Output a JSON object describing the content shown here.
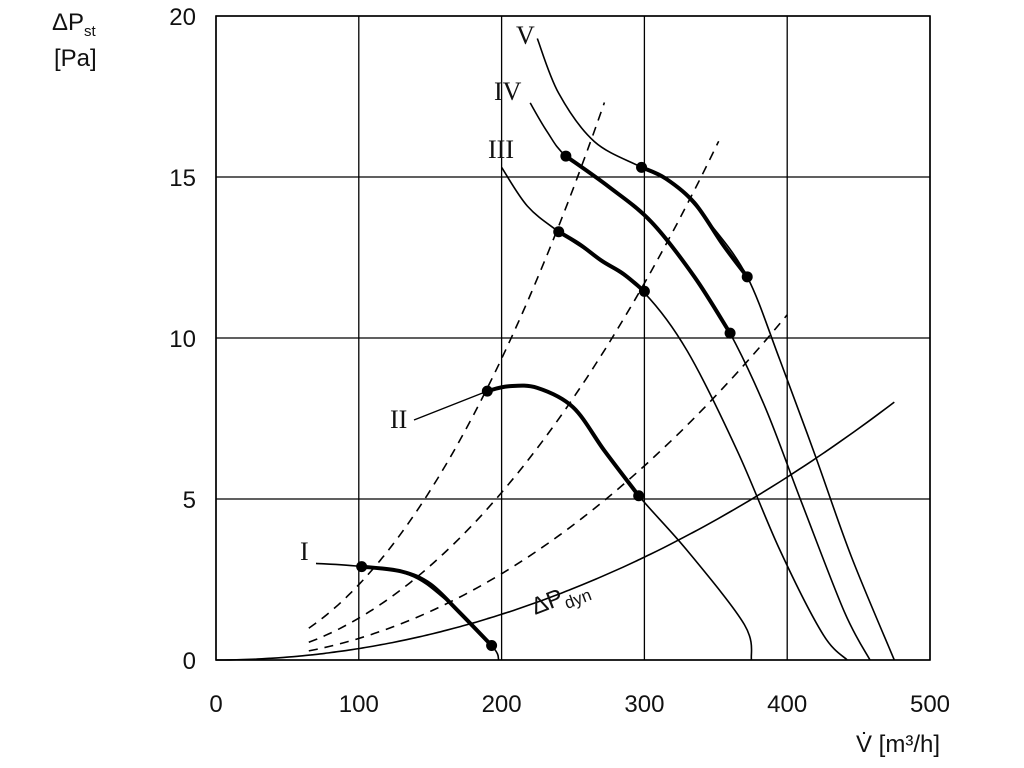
{
  "chart_data": {
    "type": "line",
    "title": "",
    "xlabel": "V̇ [m³/h]",
    "ylabel_main": "ΔP",
    "ylabel_sub": "st",
    "ylabel_unit": "[Pa]",
    "xlim": [
      0,
      500
    ],
    "ylim": [
      0,
      20
    ],
    "x_ticks": [
      0,
      100,
      200,
      300,
      400,
      500
    ],
    "y_ticks": [
      0,
      5,
      10,
      15,
      20
    ],
    "x_tick_labels": [
      "0",
      "100",
      "200",
      "300",
      "400",
      "500"
    ],
    "y_tick_labels": [
      "0",
      "5",
      "10",
      "15",
      "20"
    ],
    "grid": true,
    "series": [
      {
        "name": "I",
        "points": [
          [
            70,
            3.0
          ],
          [
            102,
            2.9
          ],
          [
            135,
            2.65
          ],
          [
            160,
            1.9
          ],
          [
            193,
            0.45
          ],
          [
            198,
            0
          ]
        ],
        "operating_range": [
          [
            102,
            2.9
          ],
          [
            130,
            2.75
          ],
          [
            150,
            2.35
          ],
          [
            170,
            1.5
          ],
          [
            193,
            0.45
          ]
        ],
        "markers": [
          [
            102,
            2.9
          ],
          [
            193,
            0.45
          ]
        ]
      },
      {
        "name": "II",
        "points": [
          [
            190,
            8.35
          ],
          [
            205,
            8.5
          ],
          [
            225,
            8.45
          ],
          [
            250,
            7.85
          ],
          [
            272,
            6.5
          ],
          [
            296,
            5.1
          ],
          [
            330,
            3.4
          ],
          [
            370,
            1.1
          ],
          [
            375,
            0
          ]
        ],
        "operating_range": [
          [
            190,
            8.35
          ],
          [
            205,
            8.5
          ],
          [
            225,
            8.45
          ],
          [
            250,
            7.85
          ],
          [
            272,
            6.5
          ],
          [
            296,
            5.1
          ]
        ],
        "markers": [
          [
            190,
            8.35
          ],
          [
            296,
            5.1
          ]
        ]
      },
      {
        "name": "III",
        "points": [
          [
            200,
            15.3
          ],
          [
            218,
            14.1
          ],
          [
            240,
            13.3
          ],
          [
            270,
            12.4
          ],
          [
            300,
            11.4
          ],
          [
            330,
            9.6
          ],
          [
            365,
            6.5
          ],
          [
            395,
            3.4
          ],
          [
            425,
            0.8
          ],
          [
            442,
            0
          ]
        ],
        "operating_range": [
          [
            240,
            13.3
          ],
          [
            255,
            12.9
          ],
          [
            270,
            12.4
          ],
          [
            285,
            12.0
          ],
          [
            300,
            11.45
          ]
        ],
        "markers": [
          [
            240,
            13.3
          ],
          [
            300,
            11.45
          ]
        ]
      },
      {
        "name": "IV",
        "points": [
          [
            220,
            17.3
          ],
          [
            232,
            16.4
          ],
          [
            245,
            15.65
          ],
          [
            275,
            14.7
          ],
          [
            305,
            13.6
          ],
          [
            335,
            11.9
          ],
          [
            360,
            10.15
          ],
          [
            385,
            7.8
          ],
          [
            410,
            4.9
          ],
          [
            440,
            1.5
          ],
          [
            458,
            0
          ]
        ],
        "operating_range": [
          [
            245,
            15.65
          ],
          [
            275,
            14.7
          ],
          [
            305,
            13.6
          ],
          [
            335,
            11.9
          ],
          [
            360,
            10.15
          ]
        ],
        "markers": [
          [
            245,
            15.65
          ],
          [
            360,
            10.15
          ]
        ]
      },
      {
        "name": "V",
        "points": [
          [
            225,
            19.3
          ],
          [
            240,
            17.6
          ],
          [
            265,
            16.1
          ],
          [
            298,
            15.3
          ],
          [
            320,
            14.8
          ],
          [
            345,
            13.6
          ],
          [
            372,
            11.9
          ],
          [
            395,
            9.3
          ],
          [
            420,
            6.3
          ],
          [
            445,
            3.2
          ],
          [
            475,
            0
          ]
        ],
        "operating_range": [
          [
            298,
            15.3
          ],
          [
            315,
            14.95
          ],
          [
            335,
            14.2
          ],
          [
            355,
            12.9
          ],
          [
            372,
            11.9
          ]
        ],
        "markers": [
          [
            298,
            15.3
          ],
          [
            372,
            11.9
          ]
        ]
      }
    ],
    "system_curves": [
      {
        "k": 0.000234,
        "x_range": [
          65,
          272
        ],
        "style": "dashed"
      },
      {
        "k": 0.00013,
        "x_range": [
          65,
          352
        ],
        "style": "dashed"
      },
      {
        "k": 6.7e-05,
        "x_range": [
          65,
          400
        ],
        "style": "dashed"
      }
    ],
    "dynamic_pressure": {
      "label_main": "ΔP",
      "label_sub": "dyn",
      "k": 3.55e-05,
      "x_range": [
        0,
        475
      ]
    }
  }
}
